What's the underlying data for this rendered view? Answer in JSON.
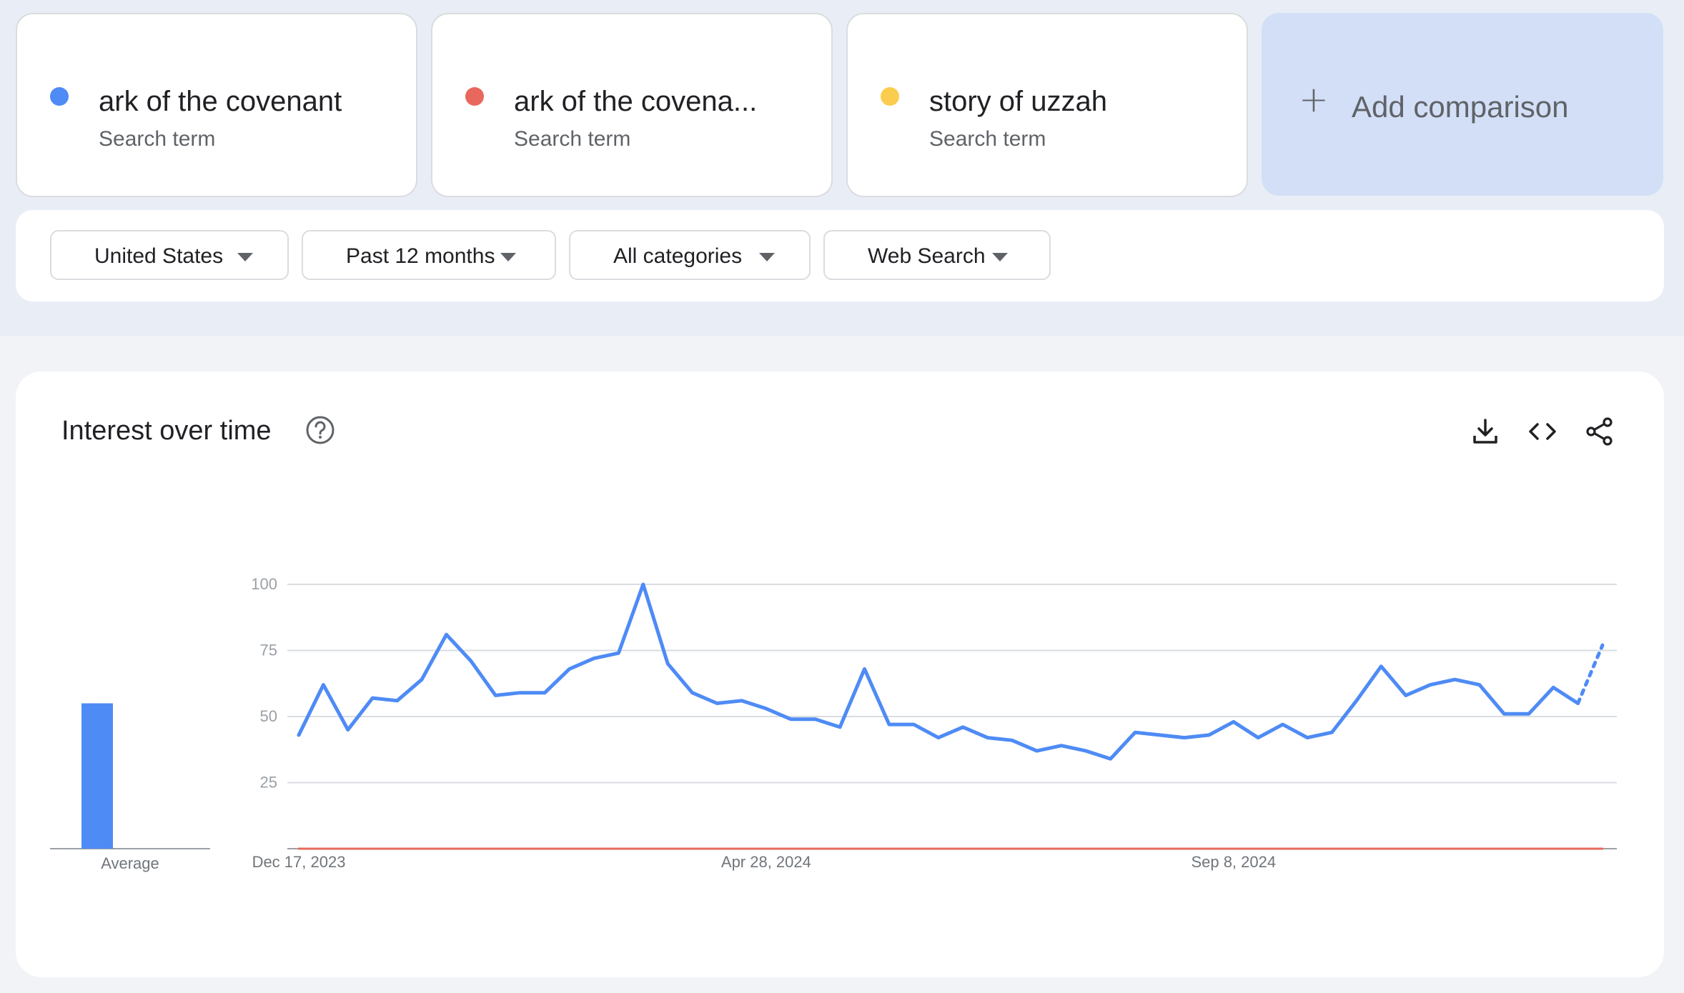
{
  "terms": [
    {
      "name": "ark of the covenant",
      "sub": "Search term",
      "color": "#4e8bf5"
    },
    {
      "name": "ark of the covena...",
      "sub": "Search term",
      "color": "#e8685e"
    },
    {
      "name": "story of uzzah",
      "sub": "Search term",
      "color": "#fbcd4e"
    }
  ],
  "add_comparison": {
    "label": "Add comparison"
  },
  "filters": {
    "region": "United States",
    "time": "Past 12 months",
    "category": "All categories",
    "search_type": "Web Search"
  },
  "section": {
    "title": "Interest over time",
    "icons": [
      "help-icon",
      "download-icon",
      "embed-icon",
      "share-icon"
    ]
  },
  "chart_data": {
    "type": "line",
    "title": "",
    "y_ticks": [
      "100",
      "75",
      "50",
      "25"
    ],
    "x_tick_labels": [
      "Dec 17, 2023",
      "Apr 28, 2024",
      "Sep 8, 2024"
    ],
    "ylim": [
      0,
      100
    ],
    "grid": true,
    "x_start": "Dec 17, 2023",
    "x_interval": "weekly",
    "average_label": "Average",
    "averages": [
      55,
      0,
      0
    ],
    "series": [
      {
        "color": "#4e8bf5",
        "values": [
          43,
          62,
          45,
          57,
          56,
          64,
          81,
          71,
          58,
          59,
          59,
          68,
          72,
          74,
          100,
          70,
          59,
          55,
          56,
          53,
          49,
          49,
          46,
          68,
          47,
          47,
          42,
          46,
          42,
          41,
          37,
          39,
          37,
          34,
          44,
          43,
          42,
          43,
          48,
          42,
          47,
          42,
          44,
          56,
          69,
          58,
          62,
          64,
          62,
          51,
          51,
          61,
          55,
          77
        ],
        "partial_last": true
      },
      {
        "color": "#e8685e",
        "values": [
          0,
          0,
          0,
          0,
          0,
          0,
          0,
          0,
          0,
          0,
          0,
          0,
          0,
          0,
          0,
          0,
          0,
          0,
          0,
          0,
          0,
          0,
          0,
          0,
          0,
          0,
          0,
          0,
          0,
          0,
          0,
          0,
          0,
          0,
          0,
          0,
          0,
          0,
          0,
          0,
          0,
          0,
          0,
          0,
          0,
          0,
          0,
          0,
          0,
          0,
          0,
          0,
          0,
          0
        ]
      },
      {
        "color": "#fbcd4e",
        "values": [
          0,
          0,
          0,
          0,
          0,
          0,
          0,
          0,
          0,
          0,
          0,
          0,
          0,
          0,
          0,
          0,
          0,
          0,
          0,
          0,
          0,
          0,
          0,
          0,
          0,
          0,
          0,
          0,
          0,
          0,
          0,
          0,
          0,
          0,
          0,
          0,
          0,
          0,
          0,
          0,
          0,
          0,
          0,
          0,
          0,
          0,
          0,
          0,
          0,
          0,
          0,
          0,
          0,
          0
        ]
      }
    ]
  }
}
